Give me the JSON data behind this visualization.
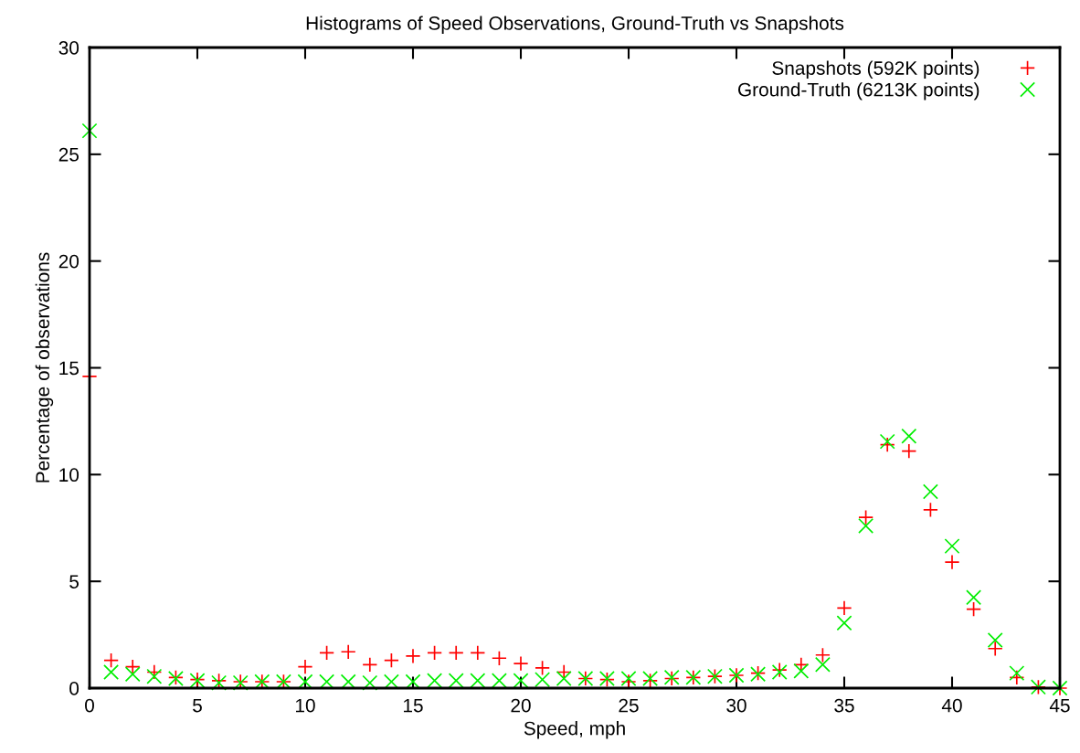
{
  "chart_data": {
    "type": "scatter",
    "title": "Histograms of Speed Observations, Ground-Truth vs Snapshots",
    "xlabel": "Speed, mph",
    "ylabel": "Percentage of observations",
    "x": [
      0,
      1,
      2,
      3,
      4,
      5,
      6,
      7,
      8,
      9,
      10,
      11,
      12,
      13,
      14,
      15,
      16,
      17,
      18,
      19,
      20,
      21,
      22,
      23,
      24,
      25,
      26,
      27,
      28,
      29,
      30,
      31,
      32,
      33,
      34,
      35,
      36,
      37,
      38,
      39,
      40,
      41,
      42,
      43,
      44,
      45
    ],
    "series": [
      {
        "name": "Snapshots (592K points)",
        "color": "#ff0000",
        "marker": "plus",
        "values": [
          14.6,
          1.3,
          1.0,
          0.75,
          0.5,
          0.4,
          0.35,
          0.3,
          0.3,
          0.3,
          1.0,
          1.65,
          1.7,
          1.1,
          1.3,
          1.5,
          1.65,
          1.65,
          1.65,
          1.4,
          1.15,
          0.95,
          0.75,
          0.45,
          0.4,
          0.3,
          0.35,
          0.45,
          0.5,
          0.55,
          0.6,
          0.7,
          0.85,
          1.1,
          1.55,
          3.75,
          8.0,
          11.4,
          11.1,
          8.35,
          5.9,
          3.7,
          1.85,
          0.5,
          0.05,
          0.0
        ]
      },
      {
        "name": "Ground-Truth (6213K points)",
        "color": "#00ee00",
        "marker": "cross",
        "values": [
          26.1,
          0.75,
          0.65,
          0.55,
          0.45,
          0.35,
          0.25,
          0.25,
          0.3,
          0.3,
          0.3,
          0.3,
          0.3,
          0.25,
          0.3,
          0.3,
          0.35,
          0.35,
          0.35,
          0.35,
          0.35,
          0.4,
          0.45,
          0.45,
          0.45,
          0.45,
          0.45,
          0.5,
          0.5,
          0.55,
          0.6,
          0.65,
          0.75,
          0.8,
          1.1,
          3.05,
          7.6,
          11.55,
          11.8,
          9.2,
          6.65,
          4.25,
          2.25,
          0.7,
          0.05,
          0.0
        ]
      }
    ],
    "xlim": [
      0,
      45
    ],
    "xticks": [
      0,
      5,
      10,
      15,
      20,
      25,
      30,
      35,
      40,
      45
    ],
    "ylim": [
      0,
      30
    ],
    "yticks": [
      0,
      5,
      10,
      15,
      20,
      25,
      30
    ],
    "grid": false,
    "legend": "top right"
  }
}
